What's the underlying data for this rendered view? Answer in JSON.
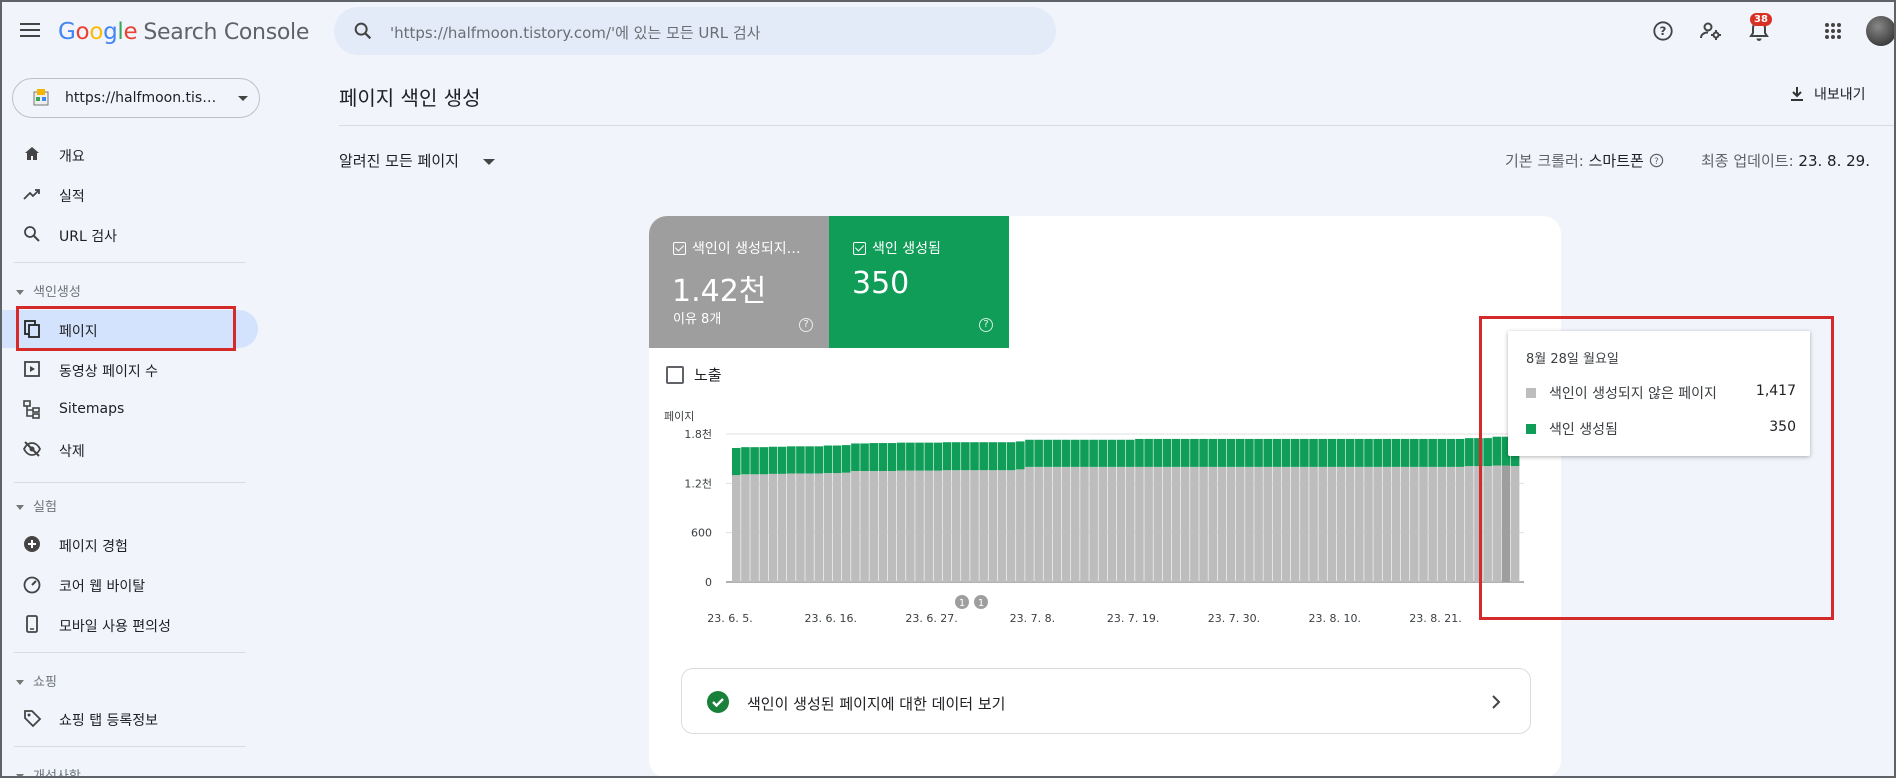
{
  "header": {
    "logo": {
      "g1": "G",
      "g2": "o",
      "g3": "o",
      "g4": "g",
      "g5": "l",
      "g6": "e",
      "suffix": "Search Console"
    },
    "search_placeholder": "'https://halfmoon.tistory.com/'에 있는 모든 URL 검사",
    "notification_count": "38"
  },
  "sidebar": {
    "property": "https://halfmoon.tis…",
    "items_top": [
      {
        "label": "개요",
        "icon": "home-icon"
      },
      {
        "label": "실적",
        "icon": "trending-up-icon"
      },
      {
        "label": "URL 검사",
        "icon": "search-icon"
      }
    ],
    "section_indexing": "색인생성",
    "items_indexing": [
      {
        "label": "페이지",
        "icon": "pages-icon",
        "active": true
      },
      {
        "label": "동영상 페이지 수",
        "icon": "video-pages-icon"
      },
      {
        "label": "Sitemaps",
        "icon": "sitemap-icon"
      },
      {
        "label": "삭제",
        "icon": "eye-off-icon"
      }
    ],
    "section_experience": "실험",
    "items_experience": [
      {
        "label": "페이지 경험",
        "icon": "plus-circle-icon"
      },
      {
        "label": "코어 웹 바이탈",
        "icon": "gauge-icon"
      },
      {
        "label": "모바일 사용 편의성",
        "icon": "phone-icon"
      }
    ],
    "section_shopping": "쇼핑",
    "items_shopping": [
      {
        "label": "쇼핑 탭 등록정보",
        "icon": "tag-icon"
      }
    ],
    "section_enhancements": "개선사항"
  },
  "main": {
    "title": "페이지 색인 생성",
    "export_label": "내보내기",
    "filter_label": "알려진 모든 페이지",
    "crawler_label": "기본 크롤러:",
    "crawler_value": "스마트폰",
    "updated_label": "최종 업데이트:",
    "updated_value": "23. 8. 29."
  },
  "tiles": {
    "not_indexed": {
      "title": "색인이 생성되지…",
      "value": "1.42천",
      "sub": "이유 8개",
      "color": "#9e9e9e"
    },
    "indexed": {
      "title": "색인 생성됨",
      "value": "350",
      "color": "#0f9d58"
    }
  },
  "impressions_label": "노출",
  "view_data_label": "색인이 생성된 페이지에 대한 데이터 보기",
  "tooltip": {
    "date": "8월 28일 월요일",
    "rows": [
      {
        "label": "색인이 생성되지 않은 페이지",
        "value": "1,417",
        "color": "#bdbdbd"
      },
      {
        "label": "색인 생성됨",
        "value": "350",
        "color": "#0f9d58"
      }
    ]
  },
  "annotations": [
    "1",
    "1"
  ],
  "chart_data": {
    "type": "bar",
    "stacked": true,
    "ylabel": "페이지",
    "ylim": [
      0,
      1800
    ],
    "yticks": [
      "0",
      "600",
      "1.2천",
      "1.8천"
    ],
    "ytick_values": [
      0,
      600,
      1200,
      1800
    ],
    "xtick_labels": [
      "23. 6. 5.",
      "23. 6. 16.",
      "23. 6. 27.",
      "23. 7. 8.",
      "23. 7. 19.",
      "23. 7. 30.",
      "23. 8. 10.",
      "23. 8. 21."
    ],
    "days": 86,
    "series": [
      {
        "name": "색인이 생성되지 않은 페이지",
        "color": "#bdbdbd",
        "values": [
          1300,
          1310,
          1310,
          1310,
          1315,
          1315,
          1320,
          1320,
          1320,
          1320,
          1325,
          1325,
          1330,
          1350,
          1350,
          1350,
          1350,
          1350,
          1355,
          1355,
          1355,
          1355,
          1355,
          1360,
          1360,
          1360,
          1360,
          1360,
          1360,
          1360,
          1360,
          1370,
          1400,
          1400,
          1400,
          1400,
          1400,
          1400,
          1400,
          1400,
          1400,
          1400,
          1400,
          1400,
          1400,
          1400,
          1400,
          1400,
          1400,
          1400,
          1400,
          1400,
          1400,
          1400,
          1400,
          1400,
          1400,
          1400,
          1400,
          1400,
          1400,
          1400,
          1400,
          1400,
          1400,
          1400,
          1400,
          1400,
          1400,
          1400,
          1400,
          1400,
          1400,
          1400,
          1400,
          1400,
          1400,
          1400,
          1400,
          1400,
          1410,
          1410,
          1410,
          1417,
          1417,
          1410
        ]
      },
      {
        "name": "색인 생성됨",
        "color": "#0f9d58",
        "values": [
          330,
          330,
          330,
          330,
          330,
          330,
          330,
          330,
          330,
          330,
          335,
          335,
          335,
          335,
          335,
          340,
          340,
          340,
          340,
          340,
          340,
          340,
          340,
          340,
          340,
          340,
          340,
          340,
          340,
          340,
          340,
          340,
          330,
          330,
          330,
          330,
          330,
          330,
          330,
          330,
          330,
          330,
          330,
          330,
          340,
          340,
          340,
          340,
          340,
          340,
          340,
          340,
          340,
          340,
          340,
          340,
          340,
          340,
          340,
          340,
          340,
          340,
          340,
          340,
          340,
          340,
          340,
          340,
          340,
          340,
          340,
          340,
          340,
          340,
          340,
          340,
          340,
          340,
          340,
          340,
          340,
          340,
          340,
          350,
          350,
          280
        ]
      }
    ]
  }
}
